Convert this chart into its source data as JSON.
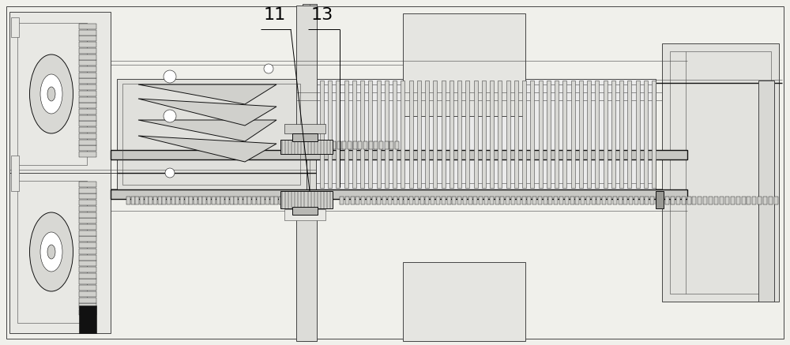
{
  "bg_color": "#f0f0eb",
  "line_color": "#444444",
  "dark_color": "#111111",
  "mid_gray": "#888888",
  "light_gray": "#cccccc",
  "fill_light": "#e8e8e4",
  "fill_mid": "#d0d0cc",
  "label_11": "11",
  "label_13": "13",
  "fig_width": 10.0,
  "fig_height": 4.37
}
